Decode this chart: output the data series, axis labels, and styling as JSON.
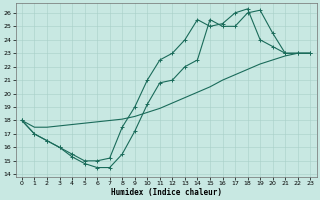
{
  "xlabel": "Humidex (Indice chaleur)",
  "background_color": "#c8e8e2",
  "grid_color": "#a8d0c8",
  "line_color": "#1a6b5a",
  "xlim": [
    -0.5,
    23.5
  ],
  "ylim": [
    13.8,
    26.7
  ],
  "xticks": [
    0,
    1,
    2,
    3,
    4,
    5,
    6,
    7,
    8,
    9,
    10,
    11,
    12,
    13,
    14,
    15,
    16,
    17,
    18,
    19,
    20,
    21,
    22,
    23
  ],
  "yticks": [
    14,
    15,
    16,
    17,
    18,
    19,
    20,
    21,
    22,
    23,
    24,
    25,
    26
  ],
  "line1_x": [
    0,
    1,
    2,
    3,
    4,
    5,
    6,
    7,
    8,
    9,
    10,
    11,
    12,
    13,
    14,
    15,
    16,
    17,
    18,
    19,
    20,
    21,
    22,
    23
  ],
  "line1_y": [
    18.0,
    17.0,
    16.5,
    16.0,
    15.3,
    14.8,
    14.5,
    14.5,
    15.5,
    17.2,
    19.2,
    20.8,
    21.0,
    22.0,
    22.5,
    25.5,
    25.0,
    25.0,
    26.0,
    26.2,
    24.5,
    23.0,
    23.0,
    23.0
  ],
  "line2_x": [
    0,
    1,
    2,
    3,
    4,
    5,
    6,
    7,
    8,
    9,
    10,
    11,
    12,
    13,
    14,
    15,
    16,
    17,
    18,
    19,
    20,
    21,
    22,
    23
  ],
  "line2_y": [
    18.0,
    17.5,
    17.5,
    17.6,
    17.7,
    17.8,
    17.9,
    18.0,
    18.1,
    18.3,
    18.6,
    18.9,
    19.3,
    19.7,
    20.1,
    20.5,
    21.0,
    21.4,
    21.8,
    22.2,
    22.5,
    22.8,
    23.0,
    23.0
  ],
  "line3_x": [
    0,
    1,
    2,
    3,
    4,
    5,
    6,
    7,
    8,
    9,
    10,
    11,
    12,
    13,
    14,
    15,
    16,
    17,
    18,
    19,
    20,
    21,
    22,
    23
  ],
  "line3_y": [
    18.0,
    17.0,
    16.5,
    16.0,
    15.5,
    15.0,
    15.0,
    15.2,
    17.5,
    19.0,
    21.0,
    22.5,
    23.0,
    24.0,
    25.5,
    25.0,
    25.2,
    26.0,
    26.3,
    24.0,
    23.5,
    23.0,
    23.0,
    23.0
  ]
}
